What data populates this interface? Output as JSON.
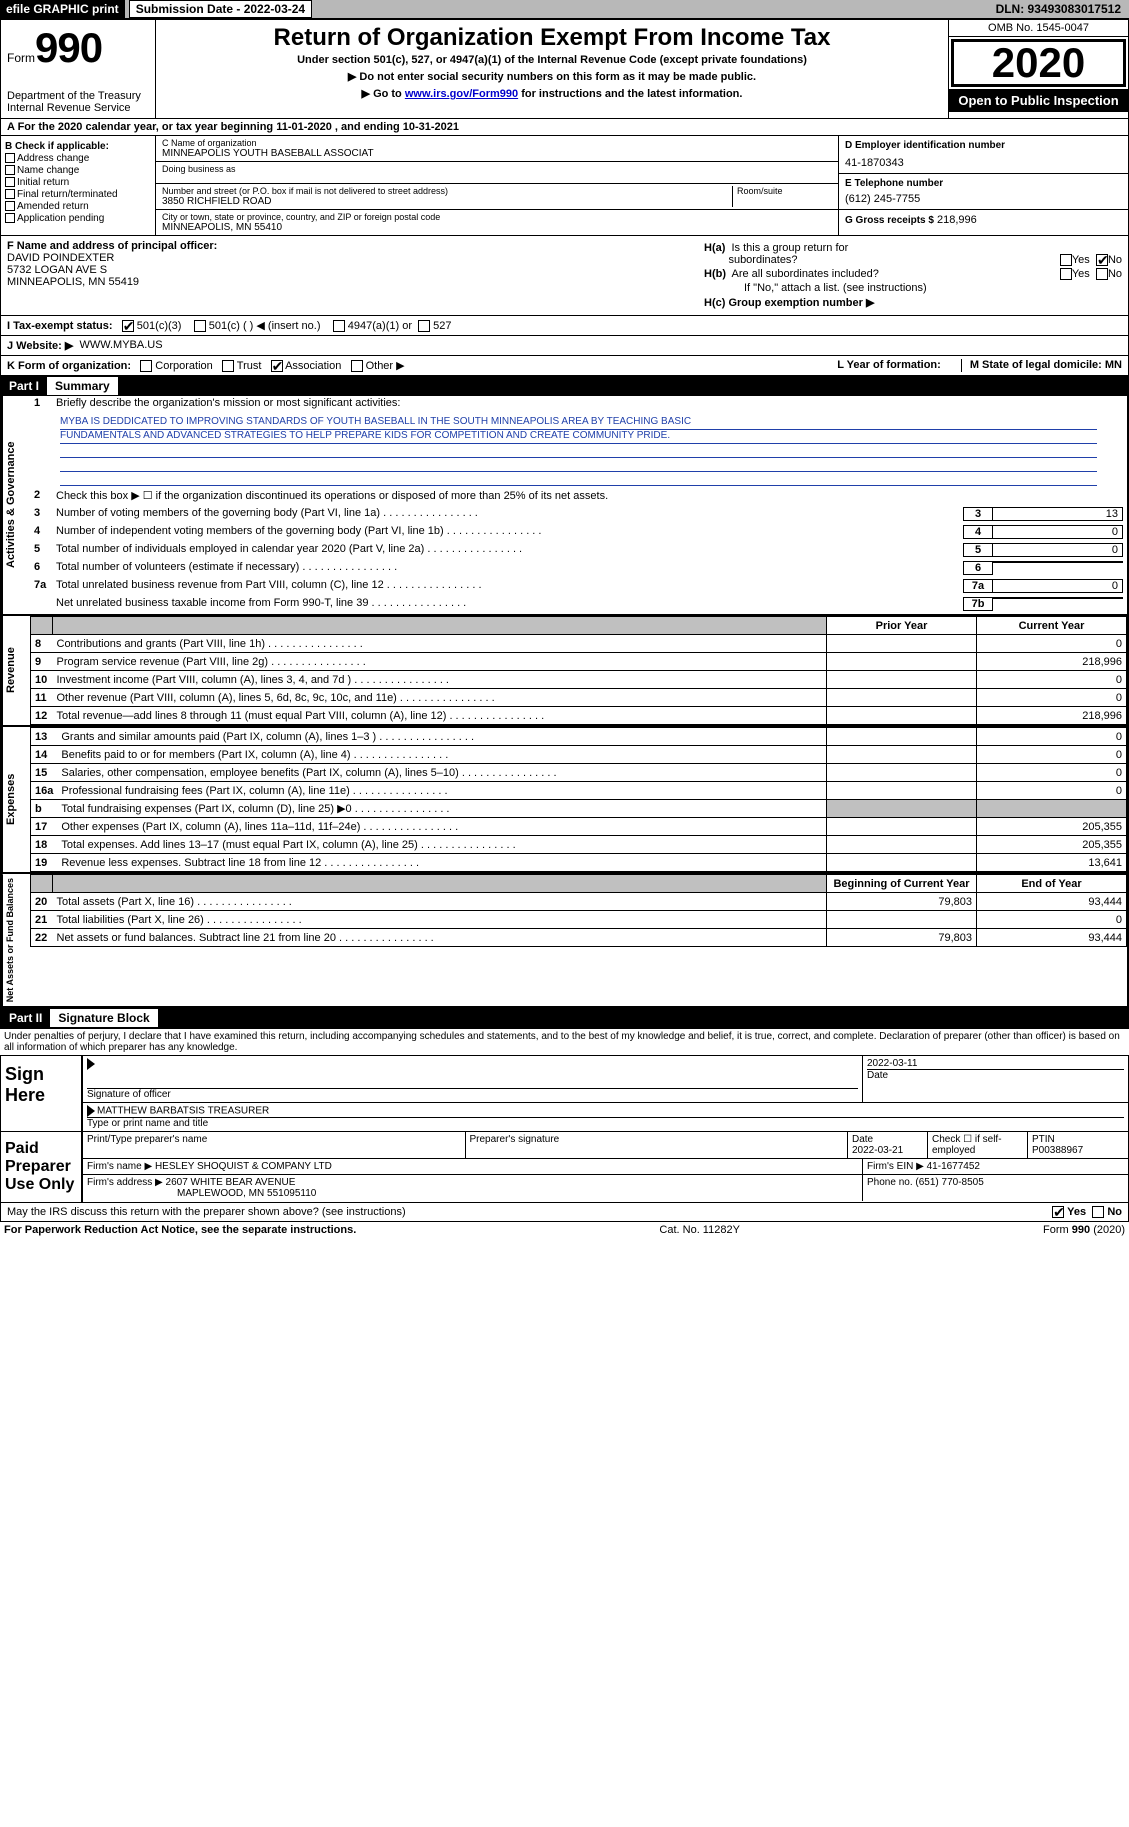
{
  "topbar": {
    "efile": "efile GRAPHIC print",
    "submission": "Submission Date - 2022-03-24",
    "dln": "DLN: 93493083017512"
  },
  "header": {
    "form_word": "Form",
    "form_num": "990",
    "dept": "Department of the Treasury\nInternal Revenue Service",
    "title": "Return of Organization Exempt From Income Tax",
    "sub1": "Under section 501(c), 527, or 4947(a)(1) of the Internal Revenue Code (except private foundations)",
    "sub2": "▶ Do not enter social security numbers on this form as it may be made public.",
    "sub3_pre": "▶ Go to ",
    "sub3_link": "www.irs.gov/Form990",
    "sub3_post": " for instructions and the latest information.",
    "omb": "OMB No. 1545-0047",
    "year": "2020",
    "inspect": "Open to Public Inspection"
  },
  "period": "A For the 2020 calendar year, or tax year beginning 11-01-2020   , and ending 10-31-2021",
  "colB": {
    "hdr": "B Check if applicable:",
    "items": [
      "Address change",
      "Name change",
      "Initial return",
      "Final return/terminated",
      "Amended return",
      "Application pending"
    ]
  },
  "colC": {
    "name_lbl": "C Name of organization",
    "name": "MINNEAPOLIS YOUTH BASEBALL ASSOCIAT",
    "dba_lbl": "Doing business as",
    "addr_lbl": "Number and street (or P.O. box if mail is not delivered to street address)",
    "room_lbl": "Room/suite",
    "addr": "3850 RICHFIELD ROAD",
    "city_lbl": "City or town, state or province, country, and ZIP or foreign postal code",
    "city": "MINNEAPOLIS, MN  55410"
  },
  "colD": {
    "ein_lbl": "D Employer identification number",
    "ein": "41-1870343",
    "tel_lbl": "E Telephone number",
    "tel": "(612) 245-7755",
    "gross_lbl": "G Gross receipts $",
    "gross": "218,996"
  },
  "fcol": {
    "lbl": "F Name and address of principal officer:",
    "name": "DAVID POINDEXTER",
    "addr1": "5732 LOGAN AVE S",
    "addr2": "MINNEAPOLIS, MN  55419"
  },
  "hcol": {
    "ha": "H(a)  Is this a group return for subordinates?",
    "hb": "H(b)  Are all subordinates included?",
    "hb_note": "If \"No,\" attach a list. (see instructions)",
    "hc": "H(c)  Group exemption number ▶",
    "yes": "Yes",
    "no": "No"
  },
  "i_row": {
    "lbl": "I  Tax-exempt status:",
    "o1": "501(c)(3)",
    "o2": "501(c) (  ) ◀ (insert no.)",
    "o3": "4947(a)(1) or",
    "o4": "527"
  },
  "j_row": {
    "lbl": "J  Website: ▶",
    "val": "WWW.MYBA.US"
  },
  "k_row": {
    "lbl": "K Form of organization:",
    "o1": "Corporation",
    "o2": "Trust",
    "o3": "Association",
    "o4": "Other ▶",
    "l": "L Year of formation:",
    "m": "M State of legal domicile: MN"
  },
  "part1": {
    "hdr": "Part I",
    "title": "Summary"
  },
  "governance": {
    "tab": "Activities & Governance",
    "l1": "Briefly describe the organization's mission or most significant activities:",
    "mission1": "MYBA IS DEDDICATED TO IMPROVING STANDARDS OF YOUTH BASEBALL IN THE SOUTH MINNEAPOLIS AREA BY TEACHING BASIC",
    "mission2": "FUNDAMENTALS AND ADVANCED STRATEGIES TO HELP PREPARE KIDS FOR COMPETITION AND CREATE COMMUNITY PRIDE.",
    "l2": "Check this box ▶ ☐  if the organization discontinued its operations or disposed of more than 25% of its net assets.",
    "rows": [
      {
        "n": "3",
        "t": "Number of voting members of the governing body (Part VI, line 1a)",
        "box": "3",
        "val": "13"
      },
      {
        "n": "4",
        "t": "Number of independent voting members of the governing body (Part VI, line 1b)",
        "box": "4",
        "val": "0"
      },
      {
        "n": "5",
        "t": "Total number of individuals employed in calendar year 2020 (Part V, line 2a)",
        "box": "5",
        "val": "0"
      },
      {
        "n": "6",
        "t": "Total number of volunteers (estimate if necessary)",
        "box": "6",
        "val": ""
      },
      {
        "n": "7a",
        "t": "Total unrelated business revenue from Part VIII, column (C), line 12",
        "box": "7a",
        "val": "0"
      },
      {
        "n": "",
        "t": "Net unrelated business taxable income from Form 990-T, line 39",
        "box": "7b",
        "val": ""
      }
    ]
  },
  "fin_hdr": {
    "py": "Prior Year",
    "cy": "Current Year"
  },
  "revenue": {
    "tab": "Revenue",
    "rows": [
      {
        "n": "8",
        "t": "Contributions and grants (Part VIII, line 1h)",
        "py": "",
        "cy": "0"
      },
      {
        "n": "9",
        "t": "Program service revenue (Part VIII, line 2g)",
        "py": "",
        "cy": "218,996"
      },
      {
        "n": "10",
        "t": "Investment income (Part VIII, column (A), lines 3, 4, and 7d )",
        "py": "",
        "cy": "0"
      },
      {
        "n": "11",
        "t": "Other revenue (Part VIII, column (A), lines 5, 6d, 8c, 9c, 10c, and 11e)",
        "py": "",
        "cy": "0"
      },
      {
        "n": "12",
        "t": "Total revenue—add lines 8 through 11 (must equal Part VIII, column (A), line 12)",
        "py": "",
        "cy": "218,996"
      }
    ]
  },
  "expenses": {
    "tab": "Expenses",
    "rows": [
      {
        "n": "13",
        "t": "Grants and similar amounts paid (Part IX, column (A), lines 1–3 )",
        "py": "",
        "cy": "0"
      },
      {
        "n": "14",
        "t": "Benefits paid to or for members (Part IX, column (A), line 4)",
        "py": "",
        "cy": "0"
      },
      {
        "n": "15",
        "t": "Salaries, other compensation, employee benefits (Part IX, column (A), lines 5–10)",
        "py": "",
        "cy": "0"
      },
      {
        "n": "16a",
        "t": "Professional fundraising fees (Part IX, column (A), line 11e)",
        "py": "",
        "cy": "0"
      },
      {
        "n": "b",
        "t": "Total fundraising expenses (Part IX, column (D), line 25) ▶0",
        "py": "grey",
        "cy": "grey"
      },
      {
        "n": "17",
        "t": "Other expenses (Part IX, column (A), lines 11a–11d, 11f–24e)",
        "py": "",
        "cy": "205,355"
      },
      {
        "n": "18",
        "t": "Total expenses. Add lines 13–17 (must equal Part IX, column (A), line 25)",
        "py": "",
        "cy": "205,355"
      },
      {
        "n": "19",
        "t": "Revenue less expenses. Subtract line 18 from line 12",
        "py": "",
        "cy": "13,641"
      }
    ]
  },
  "netassets": {
    "tab": "Net Assets or Fund Balances",
    "hdr_py": "Beginning of Current Year",
    "hdr_cy": "End of Year",
    "rows": [
      {
        "n": "20",
        "t": "Total assets (Part X, line 16)",
        "py": "79,803",
        "cy": "93,444"
      },
      {
        "n": "21",
        "t": "Total liabilities (Part X, line 26)",
        "py": "",
        "cy": "0"
      },
      {
        "n": "22",
        "t": "Net assets or fund balances. Subtract line 21 from line 20",
        "py": "79,803",
        "cy": "93,444"
      }
    ]
  },
  "part2": {
    "hdr": "Part II",
    "title": "Signature Block"
  },
  "decl": "Under penalties of perjury, I declare that I have examined this return, including accompanying schedules and statements, and to the best of my knowledge and belief, it is true, correct, and complete. Declaration of preparer (other than officer) is based on all information of which preparer has any knowledge.",
  "sign": {
    "lbl": "Sign Here",
    "sig_lbl": "Signature of officer",
    "date_lbl": "Date",
    "date": "2022-03-11",
    "name": "MATTHEW BARBATSIS TREASURER",
    "name_lbl": "Type or print name and title"
  },
  "preparer": {
    "lbl": "Paid Preparer Use Only",
    "c1": "Print/Type preparer's name",
    "c2": "Preparer's signature",
    "c3": "Date",
    "c3v": "2022-03-21",
    "c4": "Check ☐ if self-employed",
    "c5": "PTIN",
    "c5v": "P00388967",
    "firm_lbl": "Firm's name  ▶",
    "firm": "HESLEY SHOQUIST & COMPANY LTD",
    "ein_lbl": "Firm's EIN ▶",
    "ein": "41-1677452",
    "addr_lbl": "Firm's address ▶",
    "addr1": "2607 WHITE BEAR AVENUE",
    "addr2": "MAPLEWOOD, MN  551095110",
    "phone_lbl": "Phone no.",
    "phone": "(651) 770-8505"
  },
  "irs_q": "May the IRS discuss this return with the preparer shown above? (see instructions)",
  "footer": {
    "l": "For Paperwork Reduction Act Notice, see the separate instructions.",
    "m": "Cat. No. 11282Y",
    "r": "Form 990 (2020)"
  }
}
